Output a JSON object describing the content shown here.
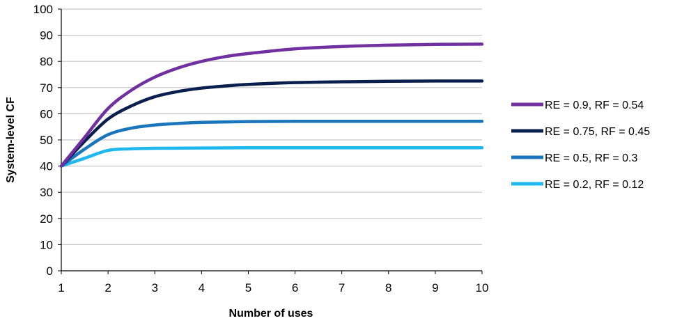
{
  "chart_data": {
    "type": "line",
    "title": "",
    "xlabel": "Number of uses",
    "ylabel": "System-level CF",
    "xlim": [
      1,
      10
    ],
    "ylim": [
      0,
      100
    ],
    "x_ticks": [
      "1",
      "2",
      "3",
      "4",
      "5",
      "6",
      "7",
      "8",
      "9",
      "10"
    ],
    "y_ticks": [
      "0",
      "10",
      "20",
      "30",
      "40",
      "50",
      "60",
      "70",
      "80",
      "90",
      "100"
    ],
    "grid": "horizontal",
    "legend_position": "right",
    "series": [
      {
        "name": "RE = 0.9, RF = 0.54",
        "color": "#7030a0",
        "x": [
          1,
          1.5,
          2,
          2.5,
          3,
          3.5,
          4,
          4.5,
          5,
          6,
          7,
          8,
          9,
          10
        ],
        "values": [
          40,
          51,
          62,
          69,
          74,
          77.5,
          80,
          81.8,
          83,
          84.8,
          85.7,
          86.2,
          86.5,
          86.6
        ]
      },
      {
        "name": "RE = 0.75, RF = 0.45",
        "color": "#0b1f4f",
        "x": [
          1,
          1.5,
          2,
          2.5,
          3,
          3.5,
          4,
          4.5,
          5,
          6,
          7,
          8,
          9,
          10
        ],
        "values": [
          40,
          49.5,
          58,
          63,
          66.5,
          68.5,
          69.8,
          70.6,
          71.2,
          71.9,
          72.2,
          72.4,
          72.5,
          72.5
        ]
      },
      {
        "name": "RE = 0.5, RF = 0.3",
        "color": "#1b75bb",
        "x": [
          1,
          1.5,
          2,
          2.5,
          3,
          3.5,
          4,
          5,
          6,
          7,
          8,
          9,
          10
        ],
        "values": [
          40,
          46.5,
          52,
          54.5,
          55.7,
          56.3,
          56.7,
          57,
          57.1,
          57.1,
          57.1,
          57.1,
          57.1
        ]
      },
      {
        "name": "RE = 0.2, RF = 0.12",
        "color": "#1eb8ee",
        "x": [
          1,
          1.5,
          2,
          2.5,
          3,
          4,
          5,
          6,
          7,
          8,
          9,
          10
        ],
        "values": [
          40,
          43,
          46,
          46.6,
          46.8,
          46.9,
          47,
          47,
          47,
          47,
          47,
          47
        ]
      }
    ]
  }
}
